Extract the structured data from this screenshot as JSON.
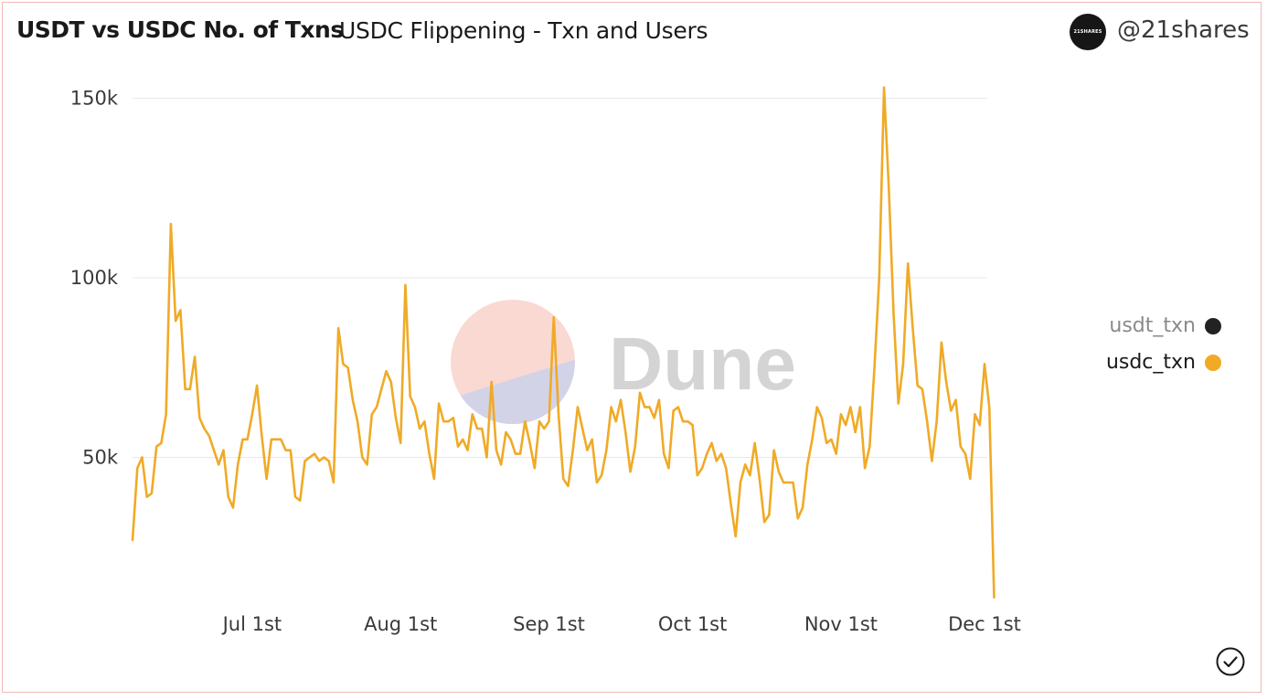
{
  "header": {
    "title": "USDT vs USDC No. of Txns",
    "subtitle": "USDC Flippening - Txn and Users",
    "avatar_text": "21SHARES",
    "handle": "@21shares"
  },
  "watermark": {
    "text": "Dune"
  },
  "legend": [
    {
      "label": "usdt_txn",
      "color": "#222222"
    },
    {
      "label": "usdc_txn",
      "color": "#f0aa26"
    }
  ],
  "chart_data": {
    "type": "line",
    "title": "USDT vs USDC No. of Txns",
    "xlabel": "",
    "ylabel": "",
    "ylim": [
      0,
      150000
    ],
    "y_ticks": [
      {
        "value": 50000,
        "label": "50k"
      },
      {
        "value": 100000,
        "label": "100k"
      },
      {
        "value": 150000,
        "label": "150k"
      }
    ],
    "x_ticks": [
      {
        "day": 25,
        "label": "Jul 1st"
      },
      {
        "day": 56,
        "label": "Aug 1st"
      },
      {
        "day": 87,
        "label": "Sep 1st"
      },
      {
        "day": 117,
        "label": "Oct 1st"
      },
      {
        "day": 148,
        "label": "Nov 1st"
      },
      {
        "day": 178,
        "label": "Dec 1st"
      }
    ],
    "series": [
      {
        "name": "usdt_txn",
        "color": "#222222",
        "values": []
      },
      {
        "name": "usdc_txn",
        "color": "#f0aa26",
        "values": [
          27000,
          47000,
          50000,
          39000,
          40000,
          53000,
          54000,
          62000,
          115000,
          88000,
          91000,
          69000,
          69000,
          78000,
          61000,
          58000,
          56000,
          52000,
          48000,
          52000,
          39000,
          36000,
          48000,
          55000,
          55000,
          62000,
          70000,
          56000,
          44000,
          55000,
          55000,
          55000,
          52000,
          52000,
          39000,
          38000,
          49000,
          50000,
          51000,
          49000,
          50000,
          49000,
          43000,
          86000,
          76000,
          75000,
          66000,
          60000,
          50000,
          48000,
          62000,
          64000,
          69000,
          74000,
          71000,
          61000,
          54000,
          98000,
          67000,
          64000,
          58000,
          60000,
          51000,
          44000,
          65000,
          60000,
          60000,
          61000,
          53000,
          55000,
          52000,
          62000,
          58000,
          58000,
          50000,
          71000,
          52000,
          48000,
          57000,
          55000,
          51000,
          51000,
          60000,
          54000,
          47000,
          60000,
          58000,
          60000,
          89000,
          62000,
          44000,
          42000,
          52000,
          64000,
          58000,
          52000,
          55000,
          43000,
          45000,
          52000,
          64000,
          60000,
          66000,
          57000,
          46000,
          53000,
          68000,
          64000,
          64000,
          61000,
          66000,
          51000,
          47000,
          63000,
          64000,
          60000,
          60000,
          59000,
          45000,
          47000,
          51000,
          54000,
          49000,
          51000,
          47000,
          37000,
          28000,
          43000,
          48000,
          45000,
          54000,
          44000,
          32000,
          34000,
          52000,
          46000,
          43000,
          43000,
          43000,
          33000,
          36000,
          48000,
          55000,
          64000,
          61000,
          54000,
          55000,
          51000,
          62000,
          59000,
          64000,
          57000,
          64000,
          47000,
          53000,
          75000,
          100000,
          153000,
          125000,
          90000,
          65000,
          76000,
          104000,
          86000,
          70000,
          69000,
          60000,
          49000,
          60000,
          82000,
          71000,
          63000,
          66000,
          53000,
          51000,
          44000,
          62000,
          59000,
          76000,
          64000,
          11000
        ]
      }
    ]
  }
}
